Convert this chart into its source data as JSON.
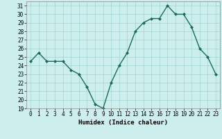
{
  "x": [
    0,
    1,
    2,
    3,
    4,
    5,
    6,
    7,
    8,
    9,
    10,
    11,
    12,
    13,
    14,
    15,
    16,
    17,
    18,
    19,
    20,
    21,
    22,
    23
  ],
  "y": [
    24.5,
    25.5,
    24.5,
    24.5,
    24.5,
    23.5,
    23.0,
    21.5,
    19.5,
    19.0,
    22.0,
    24.0,
    25.5,
    28.0,
    29.0,
    29.5,
    29.5,
    31.0,
    30.0,
    30.0,
    28.5,
    26.0,
    25.0,
    23.0
  ],
  "line_color": "#1a6b5a",
  "marker": "D",
  "marker_size": 2.0,
  "bg_color": "#cceeed",
  "grid_color": "#a0d4d0",
  "xlabel": "Humidex (Indice chaleur)",
  "xlim": [
    -0.5,
    23.5
  ],
  "ylim": [
    19,
    31.5
  ],
  "yticks": [
    19,
    20,
    21,
    22,
    23,
    24,
    25,
    26,
    27,
    28,
    29,
    30,
    31
  ],
  "xticks": [
    0,
    1,
    2,
    3,
    4,
    5,
    6,
    7,
    8,
    9,
    10,
    11,
    12,
    13,
    14,
    15,
    16,
    17,
    18,
    19,
    20,
    21,
    22,
    23
  ],
  "tick_label_size": 5.5,
  "xlabel_size": 6.5,
  "line_width": 1.0
}
